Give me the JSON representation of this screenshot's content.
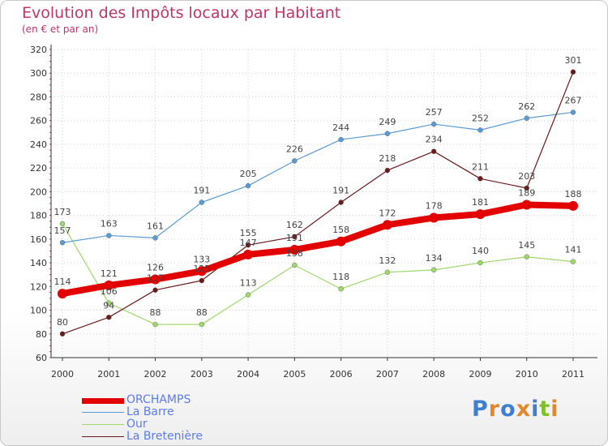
{
  "header": {
    "title": "Evolution des Impôts locaux par Habitant",
    "subtitle": "(en € et par an)"
  },
  "brand": {
    "letters": [
      "P",
      "r",
      "o",
      "x",
      "i",
      "t",
      "i"
    ],
    "colors": [
      "#3f7fd1",
      "#e2872a",
      "#3f7fd1",
      "#e2872a",
      "#3f7fd1",
      "#7fbf2a",
      "#e2872a"
    ]
  },
  "chart_data": {
    "type": "line",
    "x": [
      "2000",
      "2001",
      "2002",
      "2003",
      "2004",
      "2005",
      "2006",
      "2007",
      "2008",
      "2009",
      "2010",
      "2011"
    ],
    "ylim": [
      60,
      320
    ],
    "yticks": [
      "60",
      "80",
      "100",
      "120",
      "140",
      "160",
      "180",
      "200",
      "220",
      "240",
      "260",
      "280",
      "300",
      "320"
    ],
    "grid": "horizontal dotted",
    "legend_position": "bottom-left",
    "series": [
      {
        "name": "ORCHAMPS",
        "color": "#e30000",
        "values": [
          114,
          121,
          126,
          133,
          147,
          151,
          158,
          172,
          178,
          181,
          189,
          188
        ]
      },
      {
        "name": "La Barre",
        "color": "#5b9bd5",
        "values": [
          157,
          163,
          161,
          191,
          205,
          226,
          244,
          249,
          257,
          252,
          262,
          267
        ]
      },
      {
        "name": "Our",
        "color": "#9ed86a",
        "values": [
          173,
          106,
          88,
          88,
          113,
          138,
          118,
          132,
          134,
          140,
          145,
          141
        ]
      },
      {
        "name": "La Bretenière",
        "color": "#6b1a1a",
        "values": [
          80,
          94,
          117,
          125,
          155,
          162,
          191,
          218,
          234,
          211,
          203,
          301
        ]
      }
    ]
  }
}
